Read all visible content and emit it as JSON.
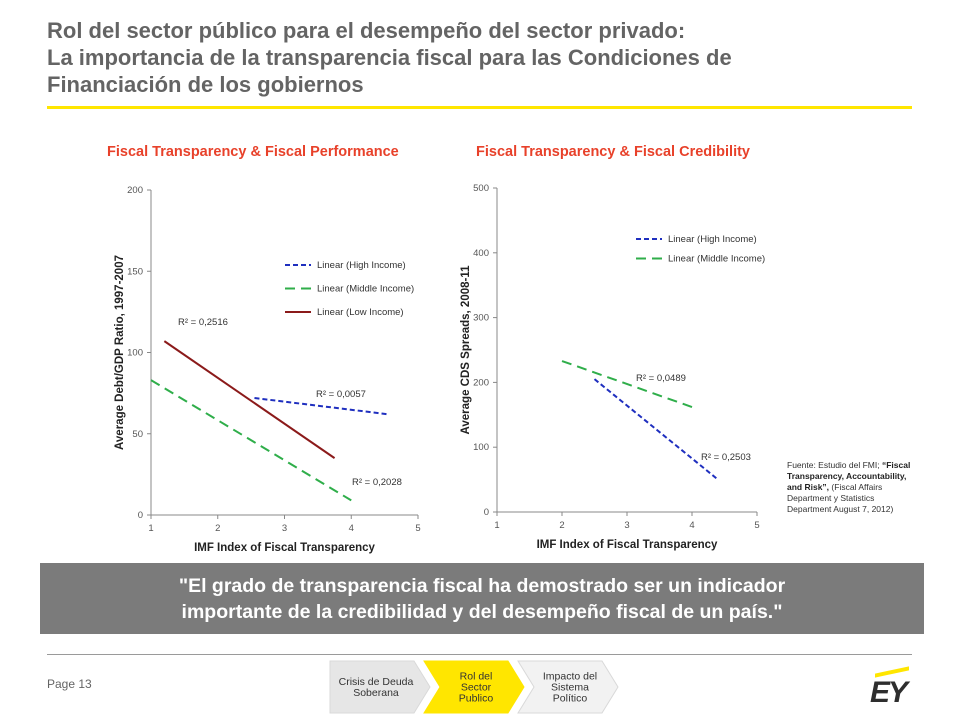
{
  "title": {
    "line1": "Rol del sector público para el desempeño del sector privado:",
    "line2": "La importancia de la transparencia fiscal para las Condiciones de",
    "line3": "Financiación de los gobiernos"
  },
  "chart_data": [
    {
      "type": "line",
      "title": "Fiscal Transparency & Fiscal Performance",
      "xlabel": "IMF Index of Fiscal Transparency",
      "ylabel": "Average Debt/GDP Ratio, 1997-2007",
      "xlim": [
        1,
        5
      ],
      "ylim": [
        0,
        200
      ],
      "x_ticks": [
        "1",
        "2",
        "3",
        "4",
        "5"
      ],
      "y_ticks": [
        "0",
        "50",
        "100",
        "150",
        "200"
      ],
      "legend_position": "top-right",
      "series": [
        {
          "name": "Linear (High Income)",
          "color": "#1f2fbf",
          "dash": "short",
          "x": [
            2.55,
            4.55
          ],
          "y": [
            72,
            62
          ],
          "r2": "R² = 0,0057"
        },
        {
          "name": "Linear (Middle Income)",
          "color": "#2fae4a",
          "dash": "long",
          "x": [
            1.0,
            4.0
          ],
          "y": [
            83,
            9
          ],
          "r2": "R² = 0,2028"
        },
        {
          "name": "Linear (Low Income)",
          "color": "#8b1a1a",
          "dash": "solid",
          "x": [
            1.2,
            3.75
          ],
          "y": [
            107,
            35
          ],
          "r2": "R² = 0,2516"
        }
      ]
    },
    {
      "type": "line",
      "title": "Fiscal Transparency & Fiscal Credibility",
      "xlabel": "IMF Index of Fiscal Transparency",
      "ylabel": "Average CDS Spreads, 2008-11",
      "xlim": [
        1,
        5
      ],
      "ylim": [
        0,
        500
      ],
      "x_ticks": [
        "1",
        "2",
        "3",
        "4",
        "5"
      ],
      "y_ticks": [
        "0",
        "100",
        "200",
        "300",
        "400",
        "500"
      ],
      "legend_position": "top-right",
      "series": [
        {
          "name": "Linear (High Income)",
          "color": "#1f2fbf",
          "dash": "short",
          "x": [
            2.5,
            4.4
          ],
          "y": [
            205,
            50
          ],
          "r2": "R² = 0,2503"
        },
        {
          "name": "Linear (Middle Income)",
          "color": "#2fae4a",
          "dash": "long",
          "x": [
            2.0,
            4.0
          ],
          "y": [
            233,
            162
          ],
          "r2": "R² = 0,0489"
        }
      ]
    }
  ],
  "source": {
    "prefix": "Fuente: Estudio del FMI;",
    "bold": "“Fiscal Transparency, Accountability, and Risk”,",
    "suffix": "(Fiscal Affairs Department y Statistics Department August 7, 2012)"
  },
  "quote": {
    "line1": "\"El grado de transparencia fiscal ha demostrado ser un indicador",
    "line2": "importante de la credibilidad y del desempeño fiscal de un país.\""
  },
  "footer": {
    "page": "Page 13",
    "logo": "EY",
    "nav": [
      {
        "lines": [
          "Crisis de Deuda",
          "Soberana"
        ],
        "fill": "#e6e6e6"
      },
      {
        "lines": [
          "Rol del",
          "Sector",
          "Publico"
        ],
        "fill": "#ffe600"
      },
      {
        "lines": [
          "Impacto del",
          "Sistema",
          "Político"
        ],
        "fill": "#f2f2f2"
      }
    ]
  }
}
